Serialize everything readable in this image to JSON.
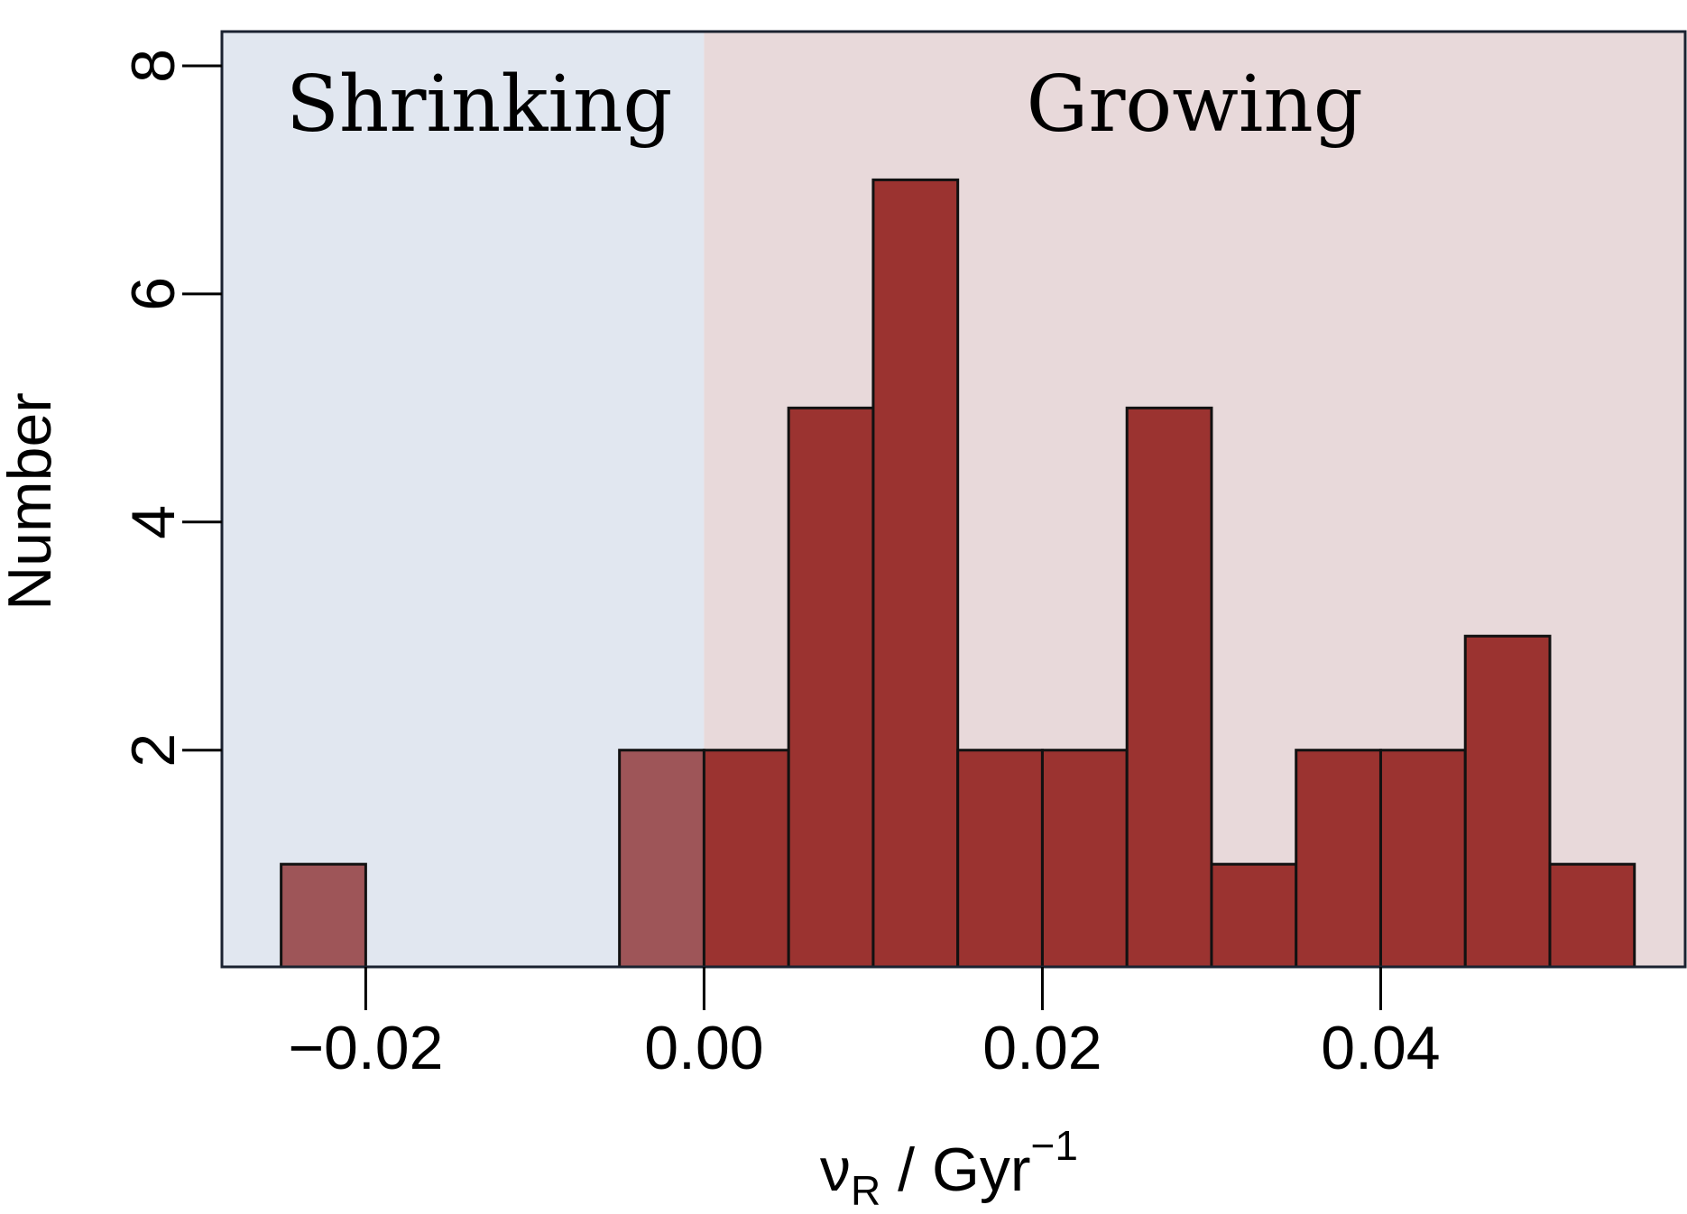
{
  "chart_data": {
    "type": "bar",
    "subtype": "histogram",
    "x_tick_labels": [
      "−0.02",
      "0.00",
      "0.02",
      "0.04"
    ],
    "x_ticks": [
      -0.02,
      0.0,
      0.02,
      0.04
    ],
    "y_tick_labels": [
      "2",
      "4",
      "6",
      "8"
    ],
    "y_ticks": [
      2,
      4,
      6,
      8
    ],
    "xlim": [
      -0.0285,
      0.058
    ],
    "ylim": [
      0.1,
      8.3
    ],
    "xlabel": {
      "symbol": "ν",
      "subscript": "R",
      "unit": " / Gyr",
      "superscript": "−1"
    },
    "ylabel": "Number",
    "regions": [
      {
        "label": "Shrinking",
        "from": -0.0285,
        "to": 0.0,
        "color": "#e1e7f0"
      },
      {
        "label": "Growing",
        "from": 0.0,
        "to": 0.058,
        "color": "#e8d9da"
      }
    ],
    "bins": [
      {
        "x0": -0.025,
        "x1": -0.02,
        "count": 1
      },
      {
        "x0": -0.02,
        "x1": -0.015,
        "count": 0
      },
      {
        "x0": -0.015,
        "x1": -0.01,
        "count": 0
      },
      {
        "x0": -0.01,
        "x1": -0.005,
        "count": 0
      },
      {
        "x0": -0.005,
        "x1": 0.0,
        "count": 2
      },
      {
        "x0": 0.0,
        "x1": 0.005,
        "count": 2
      },
      {
        "x0": 0.005,
        "x1": 0.01,
        "count": 5
      },
      {
        "x0": 0.01,
        "x1": 0.015,
        "count": 7
      },
      {
        "x0": 0.015,
        "x1": 0.02,
        "count": 2
      },
      {
        "x0": 0.02,
        "x1": 0.025,
        "count": 2
      },
      {
        "x0": 0.025,
        "x1": 0.03,
        "count": 5
      },
      {
        "x0": 0.03,
        "x1": 0.035,
        "count": 1
      },
      {
        "x0": 0.035,
        "x1": 0.04,
        "count": 2
      },
      {
        "x0": 0.04,
        "x1": 0.045,
        "count": 2
      },
      {
        "x0": 0.045,
        "x1": 0.05,
        "count": 3
      },
      {
        "x0": 0.05,
        "x1": 0.055,
        "count": 1
      }
    ],
    "colors": {
      "bar_growing": "#9b3330",
      "bar_shrinking": "#9e5558",
      "bar_edge": "#111111",
      "frame": "#1a2230"
    }
  }
}
